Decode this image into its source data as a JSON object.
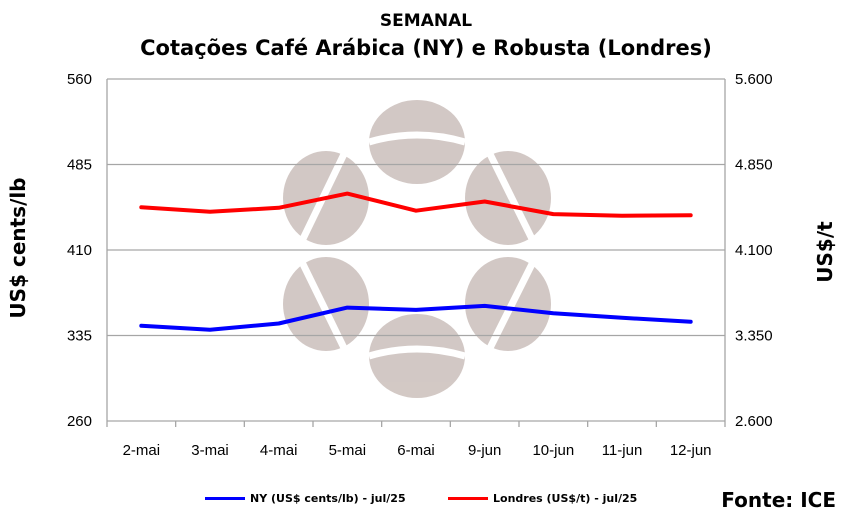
{
  "header": {
    "title": "SEMANAL",
    "subtitle": "Cotações Café Arábica (NY) e Robusta (Londres)"
  },
  "source": "Fonte: ICE",
  "colors": {
    "ny": "#0000ff",
    "londres": "#ff0000",
    "grid": "#a6a6a6",
    "watermark": "#cbbfbb"
  },
  "watermark_icon": "coffee-bean-watermark",
  "chart_data": {
    "type": "line",
    "categories": [
      "2-mai",
      "3-mai",
      "4-mai",
      "5-mai",
      "6-mai",
      "9-jun",
      "10-jun",
      "11-jun",
      "12-jun"
    ],
    "ylabel_left": "US$ cents/lb",
    "ylabel_right": "US$/t",
    "ylim_left": [
      260,
      560
    ],
    "ylim_right": [
      2600,
      5600
    ],
    "yticks_left": [
      "260",
      "335",
      "410",
      "485",
      "560"
    ],
    "yticks_right": [
      "2.600",
      "3.350",
      "4.100",
      "4.850",
      "5.600"
    ],
    "grid": true,
    "legend_position": "bottom",
    "series": [
      {
        "name": "NY (US$ cents/lb) - jul/25",
        "axis": "left",
        "values": [
          343.5,
          340,
          345.5,
          359.5,
          357.5,
          361,
          354.5,
          350.5,
          347
        ]
      },
      {
        "name": "Londres (US$/t) - jul/25",
        "axis": "right",
        "values": [
          4475,
          4435,
          4470,
          4595,
          4445,
          4525,
          4415,
          4400,
          4405
        ]
      }
    ]
  }
}
